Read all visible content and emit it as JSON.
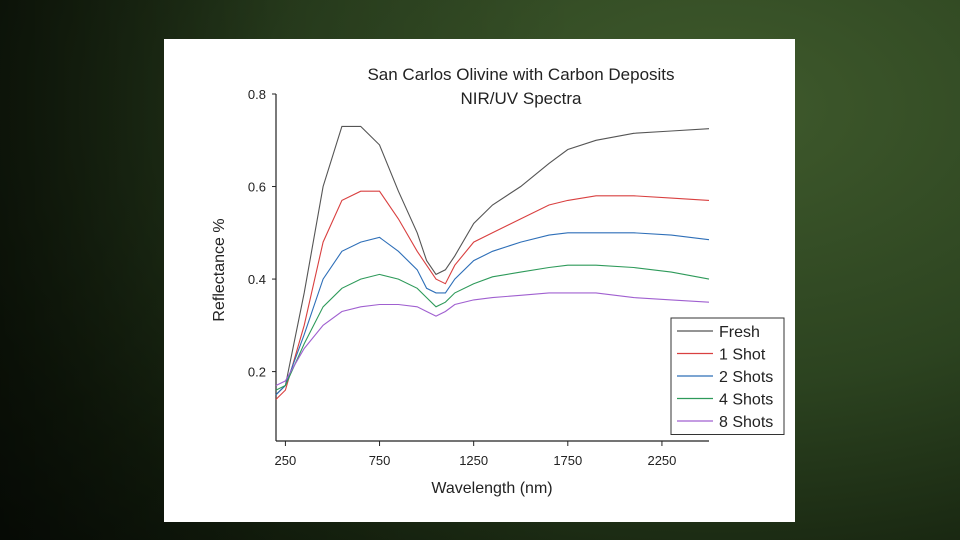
{
  "chart_data": {
    "type": "line",
    "title": "San Carlos Olivine with Carbon Deposits",
    "subtitle": "NIR/UV Spectra",
    "xlabel": "Wavelength (nm)",
    "ylabel": "Reflectance %",
    "xlim": [
      200,
      2500
    ],
    "ylim": [
      0.05,
      0.8
    ],
    "xticks": [
      250,
      750,
      1250,
      1750,
      2250
    ],
    "yticks": [
      0.2,
      0.4,
      0.6,
      0.8
    ],
    "legend_position": "bottom-right",
    "x": [
      200,
      250,
      350,
      450,
      550,
      650,
      750,
      850,
      950,
      1000,
      1050,
      1100,
      1150,
      1250,
      1350,
      1500,
      1650,
      1750,
      1900,
      2100,
      2300,
      2500
    ],
    "series": [
      {
        "name": "Fresh",
        "color": "#555555",
        "values": [
          0.15,
          0.17,
          0.37,
          0.6,
          0.73,
          0.73,
          0.69,
          0.59,
          0.5,
          0.44,
          0.41,
          0.42,
          0.45,
          0.52,
          0.56,
          0.6,
          0.65,
          0.68,
          0.7,
          0.715,
          0.72,
          0.725
        ]
      },
      {
        "name": "1 Shot",
        "color": "#d94040",
        "values": [
          0.14,
          0.16,
          0.3,
          0.48,
          0.57,
          0.59,
          0.59,
          0.53,
          0.46,
          0.43,
          0.4,
          0.39,
          0.43,
          0.48,
          0.5,
          0.53,
          0.56,
          0.57,
          0.58,
          0.58,
          0.575,
          0.57
        ]
      },
      {
        "name": "2 Shots",
        "color": "#2e6fb8",
        "values": [
          0.15,
          0.17,
          0.28,
          0.4,
          0.46,
          0.48,
          0.49,
          0.46,
          0.42,
          0.38,
          0.37,
          0.37,
          0.4,
          0.44,
          0.46,
          0.48,
          0.495,
          0.5,
          0.5,
          0.5,
          0.495,
          0.485
        ]
      },
      {
        "name": "4 Shots",
        "color": "#2e9a5a",
        "values": [
          0.16,
          0.17,
          0.26,
          0.34,
          0.38,
          0.4,
          0.41,
          0.4,
          0.38,
          0.36,
          0.34,
          0.35,
          0.37,
          0.39,
          0.405,
          0.415,
          0.425,
          0.43,
          0.43,
          0.425,
          0.415,
          0.4
        ]
      },
      {
        "name": "8 Shots",
        "color": "#a060d0",
        "values": [
          0.17,
          0.18,
          0.25,
          0.3,
          0.33,
          0.34,
          0.345,
          0.345,
          0.34,
          0.33,
          0.32,
          0.33,
          0.345,
          0.355,
          0.36,
          0.365,
          0.37,
          0.37,
          0.37,
          0.36,
          0.355,
          0.35
        ]
      }
    ]
  }
}
